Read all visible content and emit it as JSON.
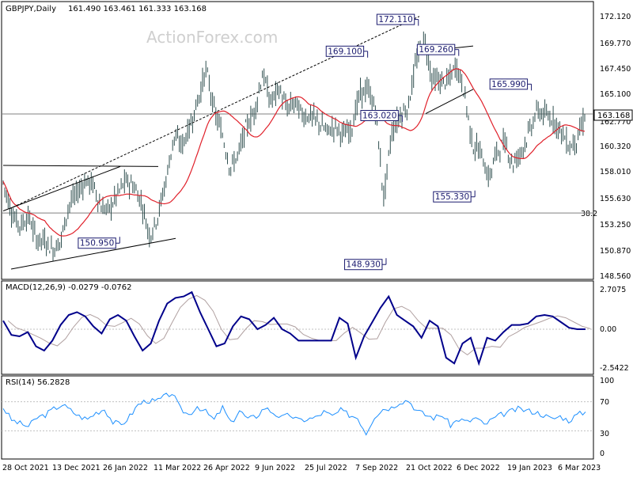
{
  "header": {
    "symbol_tf": "GBPJPY,Daily",
    "ohlc": "161.490 163.461 161.333 163.168",
    "watermark": "ActionForex.com"
  },
  "colors": {
    "candle": "#2f4f4f",
    "ma": "#e0202a",
    "macd_main": "#00008b",
    "macd_signal": "#b0a0a0",
    "rsi": "#1e90ff",
    "label_border": "#1a1a6e",
    "trendline": "#000000",
    "hline": "#808080"
  },
  "chart_data": [
    {
      "type": "candlestick",
      "panel": "price",
      "ylim": [
        147.6,
        173.2
      ],
      "y_ticks": [
        "172.120",
        "169.770",
        "167.450",
        "165.100",
        "162.770",
        "160.320",
        "158.010",
        "155.630",
        "153.250",
        "150.870",
        "148.560"
      ],
      "current_price_label": "163.168",
      "x_tick_labels": [
        "28 Oct 2021",
        "13 Dec 2021",
        "26 Jan 2022",
        "11 Mar 2022",
        "26 Apr 2022",
        "9 Jun 2022",
        "25 Jul 2022",
        "7 Sep 2022",
        "21 Oct 2022",
        "6 Dec 2022",
        "19 Jan 2023",
        "6 Mar 2023"
      ],
      "close_series": [
        {
          "date": "2021-10-28",
          "value": 156.7
        },
        {
          "date": "2021-11-05",
          "value": 153.6
        },
        {
          "date": "2021-11-12",
          "value": 152.6
        },
        {
          "date": "2021-11-19",
          "value": 153.5
        },
        {
          "date": "2021-11-26",
          "value": 151.3
        },
        {
          "date": "2021-12-03",
          "value": 151.2
        },
        {
          "date": "2021-12-10",
          "value": 150.3
        },
        {
          "date": "2021-12-17",
          "value": 151.2
        },
        {
          "date": "2021-12-24",
          "value": 154.6
        },
        {
          "date": "2021-12-31",
          "value": 155.7
        },
        {
          "date": "2022-01-07",
          "value": 156.8
        },
        {
          "date": "2022-01-14",
          "value": 156.5
        },
        {
          "date": "2022-01-21",
          "value": 154.3
        },
        {
          "date": "2022-01-28",
          "value": 154.1
        },
        {
          "date": "2022-02-04",
          "value": 155.6
        },
        {
          "date": "2022-02-11",
          "value": 156.8
        },
        {
          "date": "2022-02-18",
          "value": 156.4
        },
        {
          "date": "2022-02-25",
          "value": 154.8
        },
        {
          "date": "2022-03-04",
          "value": 151.6
        },
        {
          "date": "2022-03-11",
          "value": 153.5
        },
        {
          "date": "2022-03-18",
          "value": 156.8
        },
        {
          "date": "2022-03-25",
          "value": 161.0
        },
        {
          "date": "2022-04-01",
          "value": 160.2
        },
        {
          "date": "2022-04-08",
          "value": 162.0
        },
        {
          "date": "2022-04-15",
          "value": 164.5
        },
        {
          "date": "2022-04-22",
          "value": 167.4
        },
        {
          "date": "2022-04-29",
          "value": 163.5
        },
        {
          "date": "2022-05-06",
          "value": 161.2
        },
        {
          "date": "2022-05-13",
          "value": 158.0
        },
        {
          "date": "2022-05-20",
          "value": 159.4
        },
        {
          "date": "2022-05-27",
          "value": 162.0
        },
        {
          "date": "2022-06-03",
          "value": 163.4
        },
        {
          "date": "2022-06-10",
          "value": 167.0
        },
        {
          "date": "2022-06-17",
          "value": 164.3
        },
        {
          "date": "2022-06-24",
          "value": 165.6
        },
        {
          "date": "2022-07-01",
          "value": 163.6
        },
        {
          "date": "2022-07-08",
          "value": 164.3
        },
        {
          "date": "2022-07-15",
          "value": 163.0
        },
        {
          "date": "2022-07-22",
          "value": 163.0
        },
        {
          "date": "2022-07-29",
          "value": 162.3
        },
        {
          "date": "2022-08-05",
          "value": 161.5
        },
        {
          "date": "2022-08-12",
          "value": 162.0
        },
        {
          "date": "2022-08-19",
          "value": 161.2
        },
        {
          "date": "2022-08-26",
          "value": 161.8
        },
        {
          "date": "2022-09-02",
          "value": 165.0
        },
        {
          "date": "2022-09-09",
          "value": 165.5
        },
        {
          "date": "2022-09-16",
          "value": 163.5
        },
        {
          "date": "2022-09-23",
          "value": 155.2
        },
        {
          "date": "2022-09-30",
          "value": 161.5
        },
        {
          "date": "2022-10-07",
          "value": 163.0
        },
        {
          "date": "2022-10-14",
          "value": 163.8
        },
        {
          "date": "2022-10-21",
          "value": 168.0
        },
        {
          "date": "2022-10-28",
          "value": 170.5
        },
        {
          "date": "2022-11-04",
          "value": 166.5
        },
        {
          "date": "2022-11-11",
          "value": 166.2
        },
        {
          "date": "2022-11-18",
          "value": 166.3
        },
        {
          "date": "2022-11-25",
          "value": 167.8
        },
        {
          "date": "2022-12-02",
          "value": 165.2
        },
        {
          "date": "2022-12-09",
          "value": 160.2
        },
        {
          "date": "2022-12-16",
          "value": 159.6
        },
        {
          "date": "2022-12-23",
          "value": 157.0
        },
        {
          "date": "2022-12-30",
          "value": 159.6
        },
        {
          "date": "2023-01-06",
          "value": 160.5
        },
        {
          "date": "2023-01-13",
          "value": 158.4
        },
        {
          "date": "2023-01-20",
          "value": 159.6
        },
        {
          "date": "2023-01-27",
          "value": 161.4
        },
        {
          "date": "2023-02-03",
          "value": 163.5
        },
        {
          "date": "2023-02-10",
          "value": 163.0
        },
        {
          "date": "2023-02-17",
          "value": 162.7
        },
        {
          "date": "2023-02-24",
          "value": 161.5
        },
        {
          "date": "2023-03-03",
          "value": 160.0
        },
        {
          "date": "2023-03-10",
          "value": 160.8
        },
        {
          "date": "2023-03-17",
          "value": 163.168
        }
      ],
      "annotations": [
        {
          "text": "172.110",
          "date": "2022-10-21",
          "value": 172.11
        },
        {
          "text": "169.100",
          "date": "2022-09-07",
          "value": 169.1
        },
        {
          "text": "169.260",
          "date": "2022-11-25",
          "value": 169.26
        },
        {
          "text": "165.990",
          "date": "2023-01-27",
          "value": 165.99
        },
        {
          "text": "163.020",
          "date": "2022-10-07",
          "value": 163.02
        },
        {
          "text": "155.330",
          "date": "2022-12-09",
          "value": 155.33
        },
        {
          "text": "150.950",
          "date": "2022-02-04",
          "value": 150.95
        },
        {
          "text": "148.930",
          "date": "2022-09-23",
          "value": 148.93
        }
      ],
      "fib_level_label": "38.2"
    },
    {
      "type": "line",
      "panel": "macd",
      "title": "MACD(12,26,9) -0.0279 -0.0762",
      "ylim": [
        -3.0,
        3.0
      ],
      "y_ticks": [
        "2.7075",
        "0.00",
        "-2.5422"
      ],
      "series": [
        {
          "role": "main",
          "values": [
            0.6,
            -0.4,
            -0.5,
            -0.2,
            -1.2,
            -1.5,
            -0.8,
            0.3,
            1.0,
            1.2,
            0.9,
            0.2,
            -0.3,
            0.7,
            1.0,
            0.6,
            -0.5,
            -1.5,
            -1.0,
            0.6,
            1.8,
            2.2,
            2.3,
            2.6,
            1.2,
            0.0,
            -1.2,
            -1.0,
            0.2,
            0.9,
            0.7,
            0.0,
            0.3,
            0.8,
            0.0,
            -0.3,
            -0.8,
            -0.8,
            -0.8,
            -0.8,
            -0.8,
            0.8,
            0.4,
            -2.0,
            -0.5,
            0.5,
            1.5,
            2.3,
            1.0,
            0.6,
            0.2,
            -0.6,
            0.6,
            0.2,
            -2.0,
            -2.4,
            -1.0,
            -0.6,
            -2.4,
            -0.6,
            -0.8,
            -0.2,
            0.3,
            0.3,
            0.4,
            0.9,
            1.0,
            0.9,
            0.5,
            0.1,
            0.0,
            0.0
          ]
        }
      ]
    },
    {
      "type": "line",
      "panel": "rsi",
      "title": "RSI(14) 56.2828",
      "ylim": [
        0,
        100
      ],
      "y_ticks": [
        "100",
        "70",
        "30",
        "0"
      ],
      "series": [
        {
          "role": "rsi",
          "values": [
            62,
            45,
            40,
            36,
            48,
            52,
            60,
            66,
            58,
            50,
            46,
            55,
            60,
            42,
            38,
            50,
            66,
            72,
            70,
            76,
            82,
            60,
            52,
            64,
            56,
            45,
            62,
            40,
            58,
            46,
            50,
            62,
            55,
            48,
            52,
            44,
            46,
            48,
            56,
            50,
            58,
            52,
            48,
            27,
            50,
            60,
            62,
            70,
            72,
            58,
            52,
            48,
            52,
            38,
            46,
            42,
            48,
            38,
            46,
            52,
            56,
            60,
            58,
            56,
            52,
            46,
            50,
            44,
            52,
            56
          ]
        }
      ]
    }
  ]
}
